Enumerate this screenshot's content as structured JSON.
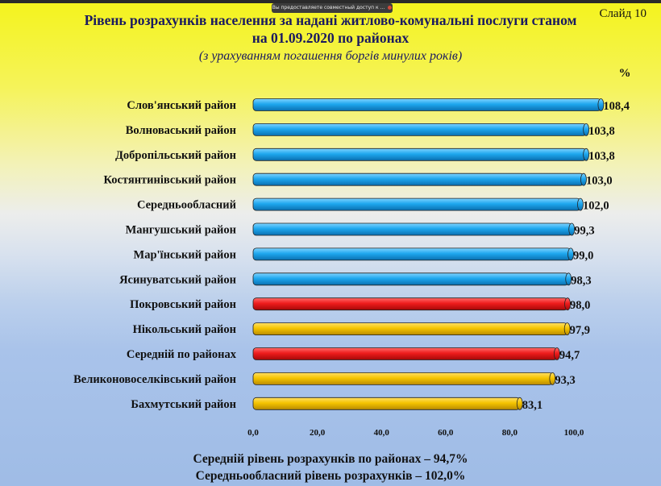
{
  "slide_label": "Слайд 10",
  "title": "Рівень розрахунків населення за надані житлово-комунальні послуги станом на 01.09.2020 по районах",
  "subtitle": "(з урахуванням погашення боргів минулих років)",
  "share_banner": "Вы предоставляете совместный доступ к ...",
  "footer": {
    "line1": "Середній рівень розрахунків по районах – 94,7%",
    "line2": "Середньообласний рівень розрахунків – 102,0%"
  },
  "colors": {
    "blue": "#1ea7ee",
    "red": "#ee1c1c",
    "yellow": "#f5c400"
  },
  "chart_data": {
    "type": "bar",
    "orientation": "horizontal",
    "unit_label": "%",
    "categories": [
      "Слов'янський район",
      "Волноваський район",
      "Добропільський район",
      "Костянтинівський район",
      "Середньообласний",
      "Мангушський район",
      "Мар'їнський район",
      "Ясинуватський район",
      "Покровський район",
      "Нікольський район",
      "Середній по районах",
      "Великоновоселківський район",
      "Бахмутський район"
    ],
    "values": [
      108.4,
      103.8,
      103.8,
      103.0,
      102.0,
      99.3,
      99.0,
      98.3,
      98.0,
      97.9,
      94.7,
      93.3,
      83.1
    ],
    "value_labels": [
      "108,4",
      "103,8",
      "103,8",
      "103,0",
      "102,0",
      "99,3",
      "99,0",
      "98,3",
      "98,0",
      "97,9",
      "94,7",
      "93,3",
      "83,1"
    ],
    "bar_colors": [
      "blue",
      "blue",
      "blue",
      "blue",
      "blue",
      "blue",
      "blue",
      "blue",
      "red",
      "yellow",
      "red",
      "yellow",
      "yellow"
    ],
    "xticks": [
      "0,0",
      "20,0",
      "40,0",
      "60,0",
      "80,0",
      "100,0"
    ],
    "xlim": [
      0,
      100
    ],
    "grid": false
  }
}
